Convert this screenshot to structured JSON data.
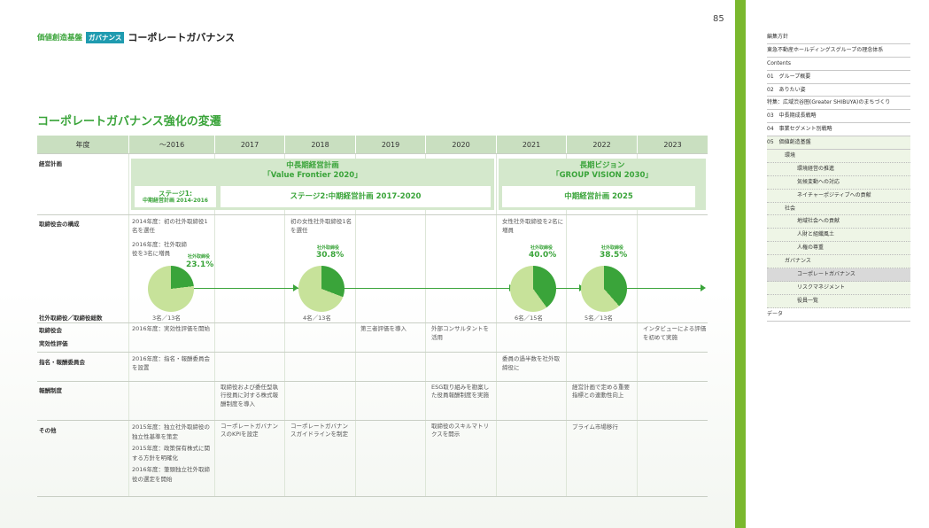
{
  "page": {
    "number": "85",
    "breadcrumb": {
      "section": "価値創造基盤",
      "badge": "ガバナンス",
      "title": "コーポレートガバナンス"
    },
    "section_title": "コーポレートガバナンス強化の変遷"
  },
  "table": {
    "headers": [
      "年度",
      "～2016",
      "2017",
      "2018",
      "2019",
      "2020",
      "2021",
      "2022",
      "2023"
    ],
    "row_labels": {
      "plan": "経営計画",
      "board": "取締役会の構成",
      "ratio": "社外取締役／取締役総数",
      "eval_1": "取締役会",
      "eval_2": "実効性評価",
      "committee": "指名・報酬委員会",
      "comp": "報酬制度",
      "other": "その他"
    },
    "plan": {
      "mid_title_1": "中長期経営計画",
      "mid_title_2": "「Value Frontier 2020」",
      "stage1_1": "ステージ1:",
      "stage1_2": "中期経営計画 2014-2016",
      "stage2": "ステージ2:中期経営計画 2017-2020",
      "vision_title_1": "長期ビジョン",
      "vision_title_2": "「GROUP VISION 2030」",
      "plan2025": "中期経営計画 2025"
    },
    "board": {
      "c2016_a": "2014年度：初の社外取締役1名を選任",
      "c2016_b": "2016年度：社外取締役を3名に増員",
      "c2018": "初の女性社外取締役1名を選任",
      "c2021": "女性社外取締役を2名に増員",
      "ratio_label": "社外取締役",
      "ratios": [
        "23.1%",
        "30.8%",
        "40.0%",
        "38.5%"
      ],
      "counts": [
        "3名／13名",
        "4名／13名",
        "6名／15名",
        "5名／13名"
      ]
    },
    "pie_data": [
      {
        "year": "2016",
        "outside": 3,
        "total": 13,
        "percent": 23.1
      },
      {
        "year": "2018",
        "outside": 4,
        "total": 13,
        "percent": 30.8
      },
      {
        "year": "2021",
        "outside": 6,
        "total": 15,
        "percent": 40.0
      },
      {
        "year": "2022",
        "outside": 5,
        "total": 13,
        "percent": 38.5
      }
    ],
    "evaluation": {
      "c2016": "2016年度：実効性評価を開始",
      "c2019": "第三者評価を導入",
      "c2020": "外部コンサルタントを活用",
      "c2023": "インタビューによる評価を初めて実施"
    },
    "committee": {
      "c2016": "2016年度：指名・報酬委員会を設置",
      "c2021": "委員の過半数を社外取締役に"
    },
    "compensation": {
      "c2017": "取締役および委任型執行役員に対する株式報酬制度を導入",
      "c2020": "ESG取り組みを勘案した役員報酬制度を実施",
      "c2022": "経営計画で定める重要指標との連動性向上"
    },
    "other": {
      "c2016_a": "2015年度：独立社外取締役の独立性基準を策定",
      "c2016_b": "2015年度：政策保有株式に関する方針を明確化",
      "c2016_c": "2016年度：筆頭独立社外取締役の選定を開始",
      "c2017": "コーポレートガバナンスのKPIを設定",
      "c2018": "コーポレートガバナンスガイドラインを制定",
      "c2020": "取締役のスキルマトリクスを開示",
      "c2022": "プライム市場移行"
    }
  },
  "sidebar": {
    "items": [
      "編集方針",
      "東急不動産ホールディングスグループの理念体系",
      "Contents",
      "01　グループ概要",
      "02　ありたい姿",
      "特集：広域渋谷圏(Greater SHIBUYA)のまちづくり",
      "03　中長期成長戦略",
      "04　事業セグメント別戦略",
      "05　価値創造基盤",
      "環境",
      "環境経営の推進",
      "気候変動への対応",
      "ネイチャーポジティブへの貢献",
      "社会",
      "地域社会への貢献",
      "人財と組織風土",
      "人権の尊重",
      "ガバナンス",
      "コーポレートガバナンス",
      "リスクマネジメント",
      "役員一覧",
      "データ"
    ]
  },
  "colors": {
    "accent": "#3aa43a",
    "badge": "#1f9bb0",
    "pie_light": "#c7e29a",
    "pie_dark": "#3aa43a"
  }
}
